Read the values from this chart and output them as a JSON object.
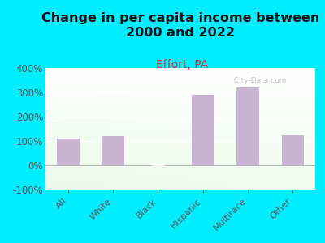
{
  "title": "Change in per capita income between\n2000 and 2022",
  "subtitle": "Effort, PA",
  "categories": [
    "All",
    "White",
    "Black",
    "Hispanic",
    "Multirace",
    "Other"
  ],
  "values": [
    110,
    120,
    0,
    290,
    320,
    125
  ],
  "bar_color": "#c9b4d4",
  "background_outer": "#00eeff",
  "title_fontsize": 11.5,
  "subtitle_fontsize": 10,
  "subtitle_color": "#cc3333",
  "title_color": "#111111",
  "ylabel_color": "#555555",
  "tick_label_color": "#555555",
  "ylim": [
    -100,
    400
  ],
  "yticks": [
    -100,
    0,
    100,
    200,
    300,
    400
  ],
  "watermark": "  City-Data.com"
}
